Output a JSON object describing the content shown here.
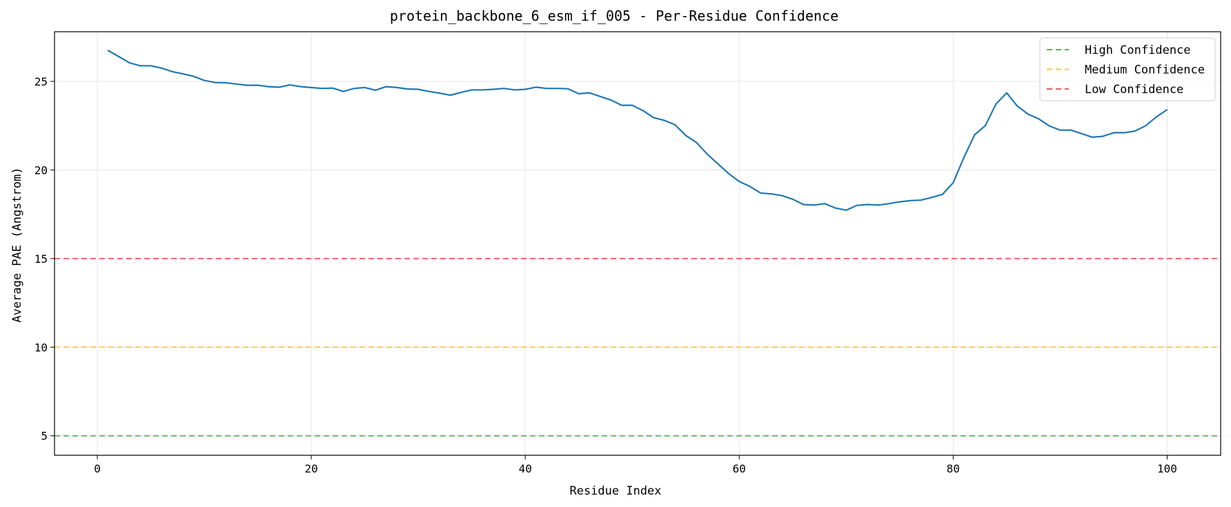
{
  "chart_data": {
    "type": "line",
    "title": "protein_backbone_6_esm_if_005 - Per-Residue Confidence",
    "xlabel": "Residue Index",
    "ylabel": "Average PAE (Angstrom)",
    "xlim": [
      -4,
      105
    ],
    "ylim": [
      3.9,
      27.8
    ],
    "xticks": [
      0,
      20,
      40,
      60,
      80,
      100
    ],
    "yticks": [
      5,
      10,
      15,
      20,
      25
    ],
    "grid": true,
    "legend_position": "top-right",
    "series": [
      {
        "color": "#1f77b4",
        "x": [
          1,
          2,
          3,
          4,
          5,
          6,
          7,
          8,
          9,
          10,
          11,
          12,
          13,
          14,
          15,
          16,
          17,
          18,
          19,
          20,
          21,
          22,
          23,
          24,
          25,
          26,
          27,
          28,
          29,
          30,
          31,
          32,
          33,
          34,
          35,
          36,
          37,
          38,
          39,
          40,
          41,
          42,
          43,
          44,
          45,
          46,
          47,
          48,
          49,
          50,
          51,
          52,
          53,
          54,
          55,
          56,
          57,
          58,
          59,
          60,
          61,
          62,
          63,
          64,
          65,
          66,
          67,
          68,
          69,
          70,
          71,
          72,
          73,
          74,
          75,
          76,
          77,
          78,
          79,
          80,
          81,
          82,
          83,
          84,
          85,
          86,
          87,
          88,
          89,
          90,
          91,
          92,
          93,
          94,
          95,
          96,
          97,
          98,
          99,
          100
        ],
        "values": [
          26.75,
          26.4,
          26.05,
          25.88,
          25.88,
          25.75,
          25.55,
          25.42,
          25.28,
          25.05,
          24.93,
          24.92,
          24.85,
          24.78,
          24.78,
          24.7,
          24.67,
          24.8,
          24.7,
          24.65,
          24.6,
          24.62,
          24.43,
          24.6,
          24.65,
          24.5,
          24.7,
          24.65,
          24.57,
          24.55,
          24.43,
          24.33,
          24.22,
          24.38,
          24.52,
          24.52,
          24.55,
          24.6,
          24.52,
          24.55,
          24.67,
          24.6,
          24.6,
          24.58,
          24.3,
          24.35,
          24.15,
          23.95,
          23.65,
          23.65,
          23.35,
          22.95,
          22.8,
          22.55,
          21.95,
          21.55,
          20.9,
          20.35,
          19.8,
          19.35,
          19.07,
          18.7,
          18.65,
          18.55,
          18.35,
          18.05,
          18.02,
          18.1,
          17.85,
          17.73,
          18.0,
          18.05,
          18.02,
          18.1,
          18.2,
          18.27,
          18.3,
          18.45,
          18.62,
          19.28,
          20.7,
          21.98,
          22.5,
          23.72,
          24.35,
          23.6,
          23.15,
          22.88,
          22.48,
          22.25,
          22.25,
          22.05,
          21.85,
          21.9,
          22.1,
          22.1,
          22.2,
          22.5,
          23.0,
          23.4
        ]
      }
    ],
    "reference_lines": [
      {
        "name": "High Confidence",
        "y": 5,
        "color": "#5aad5a"
      },
      {
        "name": "Medium Confidence",
        "y": 10,
        "color": "#ffc34d"
      },
      {
        "name": "Low Confidence",
        "y": 15,
        "color": "#f25555"
      }
    ]
  }
}
